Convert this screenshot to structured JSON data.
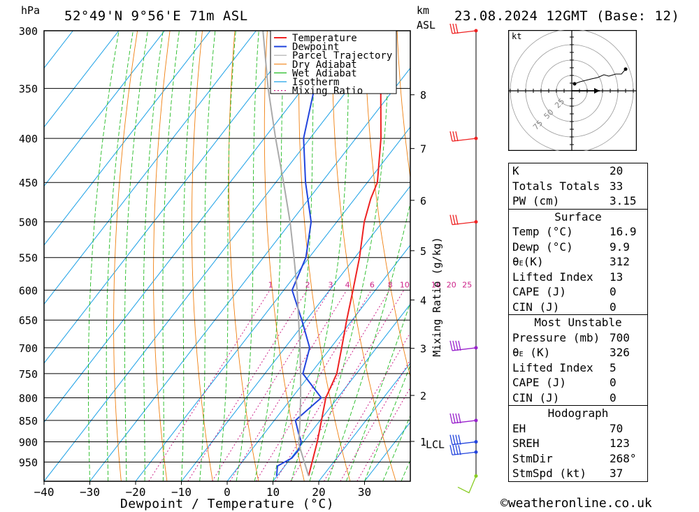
{
  "header": {
    "unit_left": "hPa",
    "location": "52°49'N 9°56'E 71m ASL",
    "unit_km": "km",
    "unit_asl": "ASL",
    "datetime": "23.08.2024 12GMT (Base: 12)"
  },
  "chart_data": {
    "type": "line",
    "title": "52°49'N 9°56'E 71m ASL",
    "xlabel": "Dewpoint / Temperature (°C)",
    "ylabel": "hPa",
    "right_label": "Mixing Ratio (g/kg)",
    "xlim": [
      -40,
      40
    ],
    "ylim": [
      1000,
      300
    ],
    "x_ticks": [
      -40,
      -30,
      -20,
      -10,
      0,
      10,
      20,
      30
    ],
    "pressure_levels": [
      300,
      350,
      400,
      450,
      500,
      550,
      600,
      650,
      700,
      750,
      800,
      850,
      900,
      950
    ],
    "km_labels": [
      "1",
      "2",
      "3",
      "4",
      "5",
      "6",
      "7",
      "8"
    ],
    "lcl_label": "LCL",
    "lcl_pressure": 905,
    "mixing_ratio_labels": [
      "1",
      "2",
      "3",
      "4",
      "6",
      "8",
      "10",
      "16",
      "20",
      "25"
    ],
    "mixing_ratio_values": [
      1,
      2,
      3,
      4,
      6,
      8,
      10,
      16,
      20,
      25
    ],
    "legend": [
      "Temperature",
      "Dewpoint",
      "Parcel Trajectory",
      "Dry Adiabat",
      "Wet Adiabat",
      "Isotherm",
      "Mixing Ratio"
    ],
    "series": [
      {
        "name": "Temperature",
        "color": "#ee2222",
        "points": [
          [
            986,
            16.9
          ],
          [
            950,
            15.3
          ],
          [
            900,
            13.0
          ],
          [
            850,
            10.3
          ],
          [
            800,
            7.4
          ],
          [
            750,
            5.7
          ],
          [
            700,
            2.4
          ],
          [
            650,
            -1.2
          ],
          [
            600,
            -4.9
          ],
          [
            550,
            -9.0
          ],
          [
            500,
            -14.0
          ],
          [
            470,
            -16.5
          ],
          [
            450,
            -17.8
          ],
          [
            400,
            -24.5
          ],
          [
            350,
            -33.0
          ],
          [
            300,
            -41.3
          ]
        ]
      },
      {
        "name": "Dewpoint",
        "color": "#2244dd",
        "points": [
          [
            986,
            9.9
          ],
          [
            960,
            8.4
          ],
          [
            940,
            10.2
          ],
          [
            920,
            10.3
          ],
          [
            900,
            9.5
          ],
          [
            880,
            7.5
          ],
          [
            850,
            4.6
          ],
          [
            800,
            6.4
          ],
          [
            750,
            -1.7
          ],
          [
            700,
            -4.6
          ],
          [
            650,
            -11.0
          ],
          [
            600,
            -18.2
          ],
          [
            550,
            -20.7
          ],
          [
            500,
            -25.6
          ],
          [
            450,
            -33.5
          ],
          [
            400,
            -41.4
          ],
          [
            350,
            -47.5
          ],
          [
            300,
            -55.4
          ]
        ]
      },
      {
        "name": "Parcel Trajectory",
        "color": "#aaaaaa",
        "points": [
          [
            986,
            16.9
          ],
          [
            905,
            9.3
          ],
          [
            850,
            5.6
          ],
          [
            800,
            1.9
          ],
          [
            750,
            -2.2
          ],
          [
            700,
            -6.7
          ],
          [
            650,
            -11.7
          ],
          [
            600,
            -17.1
          ],
          [
            550,
            -23.3
          ],
          [
            500,
            -30.2
          ],
          [
            450,
            -38.3
          ],
          [
            400,
            -47.5
          ],
          [
            350,
            -57.6
          ],
          [
            300,
            -68.5
          ]
        ]
      }
    ],
    "wind_barbs_pressures": [
      300,
      400,
      500,
      700,
      850,
      900,
      925,
      986
    ]
  },
  "hodograph": {
    "unit": "kt",
    "ring_labels": [
      "25",
      "50",
      "75"
    ]
  },
  "indices": {
    "k": {
      "label": "K",
      "value": "20"
    },
    "tt": {
      "label": "Totals Totals",
      "value": "33"
    },
    "pw": {
      "label": "PW (cm)",
      "value": "3.15"
    }
  },
  "surface": {
    "title": "Surface",
    "temp": {
      "label": "Temp (°C)",
      "value": "16.9"
    },
    "dewp": {
      "label": "Dewp (°C)",
      "value": "9.9"
    },
    "theta": {
      "label_main": "θ",
      "label_sub": "E",
      "label_tail": "(K)",
      "value": "312"
    },
    "li": {
      "label": "Lifted Index",
      "value": "13"
    },
    "cape": {
      "label": "CAPE (J)",
      "value": "0"
    },
    "cin": {
      "label": "CIN (J)",
      "value": "0"
    }
  },
  "most_unstable": {
    "title": "Most Unstable",
    "pressure": {
      "label": "Pressure (mb)",
      "value": "700"
    },
    "theta": {
      "label_main": "θ",
      "label_sub": "E",
      "label_tail": " (K)",
      "value": "326"
    },
    "li": {
      "label": "Lifted Index",
      "value": "5"
    },
    "cape": {
      "label": "CAPE (J)",
      "value": "0"
    },
    "cin": {
      "label": "CIN (J)",
      "value": "0"
    }
  },
  "hodograph_table": {
    "title": "Hodograph",
    "eh": {
      "label": "EH",
      "value": "70"
    },
    "sreh": {
      "label": "SREH",
      "value": "123"
    },
    "stmdir": {
      "label": "StmDir",
      "value": "268°"
    },
    "stmspd": {
      "label": "StmSpd (kt)",
      "value": "37"
    }
  },
  "footer": {
    "copyright": "©weatheronline.co.uk"
  }
}
